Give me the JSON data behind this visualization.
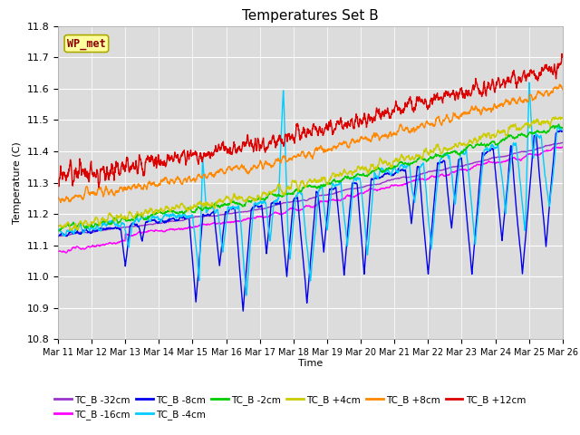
{
  "title": "Temperatures Set B",
  "xlabel": "Time",
  "ylabel": "Temperature (C)",
  "ylim": [
    10.8,
    11.8
  ],
  "yticks": [
    10.8,
    10.9,
    11.0,
    11.1,
    11.2,
    11.3,
    11.4,
    11.5,
    11.6,
    11.7,
    11.8
  ],
  "x_labels": [
    "Mar 11",
    "Mar 12",
    "Mar 13",
    "Mar 14",
    "Mar 15",
    "Mar 16",
    "Mar 17",
    "Mar 18",
    "Mar 19",
    "Mar 20",
    "Mar 21",
    "Mar 22",
    "Mar 23",
    "Mar 24",
    "Mar 25",
    "Mar 26"
  ],
  "series_order": [
    "TC_B -32cm",
    "TC_B -16cm",
    "TC_B -8cm",
    "TC_B -4cm",
    "TC_B -2cm",
    "TC_B +4cm",
    "TC_B +8cm",
    "TC_B +12cm"
  ],
  "series": {
    "TC_B -32cm": {
      "color": "#9933CC",
      "lw": 1.0
    },
    "TC_B -16cm": {
      "color": "#FF00FF",
      "lw": 1.0
    },
    "TC_B -8cm": {
      "color": "#0000EE",
      "lw": 1.0
    },
    "TC_B -4cm": {
      "color": "#00CCFF",
      "lw": 1.0
    },
    "TC_B -2cm": {
      "color": "#00CC00",
      "lw": 1.0
    },
    "TC_B +4cm": {
      "color": "#CCCC00",
      "lw": 1.0
    },
    "TC_B +8cm": {
      "color": "#FF8800",
      "lw": 1.0
    },
    "TC_B +12cm": {
      "color": "#DD0000",
      "lw": 1.0
    }
  },
  "legend_order": [
    "TC_B -32cm",
    "TC_B -16cm",
    "TC_B -8cm",
    "TC_B -4cm",
    "TC_B -2cm",
    "TC_B +4cm",
    "TC_B +8cm",
    "TC_B +12cm"
  ],
  "wp_met_label": "WP_met",
  "plot_bg_color": "#dcdcdc",
  "fig_bg_color": "#ffffff"
}
